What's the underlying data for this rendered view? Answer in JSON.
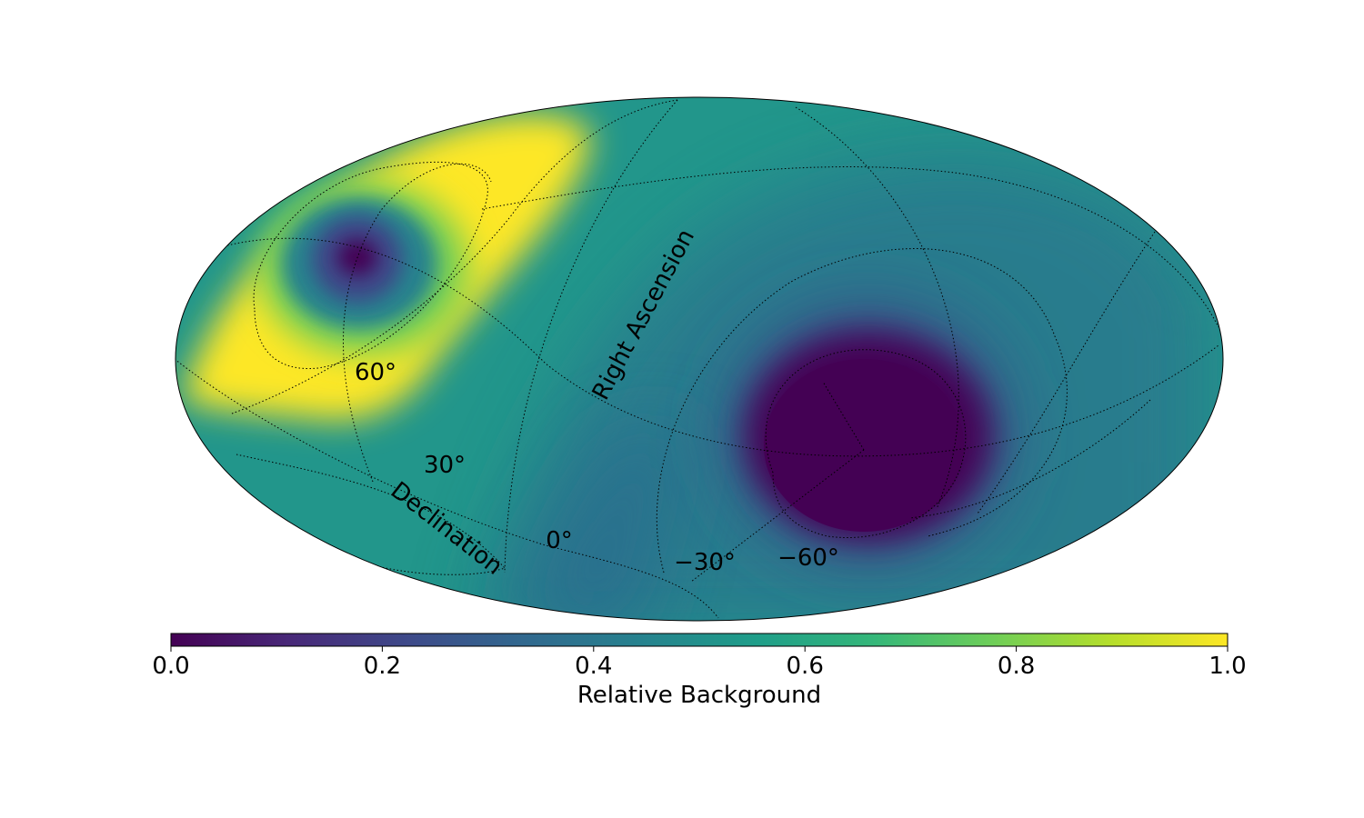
{
  "chart_data": {
    "type": "heatmap",
    "projection": "mollweide",
    "title": "",
    "colormap": "viridis",
    "colormap_stops": [
      "#440154",
      "#482878",
      "#3e4989",
      "#31688e",
      "#26828e",
      "#1f9e89",
      "#35b779",
      "#6ece58",
      "#b5de2b",
      "#fde725"
    ],
    "coordinate_labels": {
      "right_ascension": "Right Ascension",
      "declination": "Declination"
    },
    "declination_tick_labels": [
      "60°",
      "30°",
      "0°",
      "−30°",
      "−60°"
    ],
    "features": [
      {
        "name": "high-background ring",
        "value": 1.0
      },
      {
        "name": "minimum near north pole",
        "value": 0.0
      },
      {
        "name": "large minimum region",
        "value": 0.0
      }
    ],
    "colorbar": {
      "label": "Relative Background",
      "min": 0.0,
      "max": 1.0,
      "ticks": [
        "0.0",
        "0.2",
        "0.4",
        "0.6",
        "0.8",
        "1.0"
      ]
    }
  }
}
